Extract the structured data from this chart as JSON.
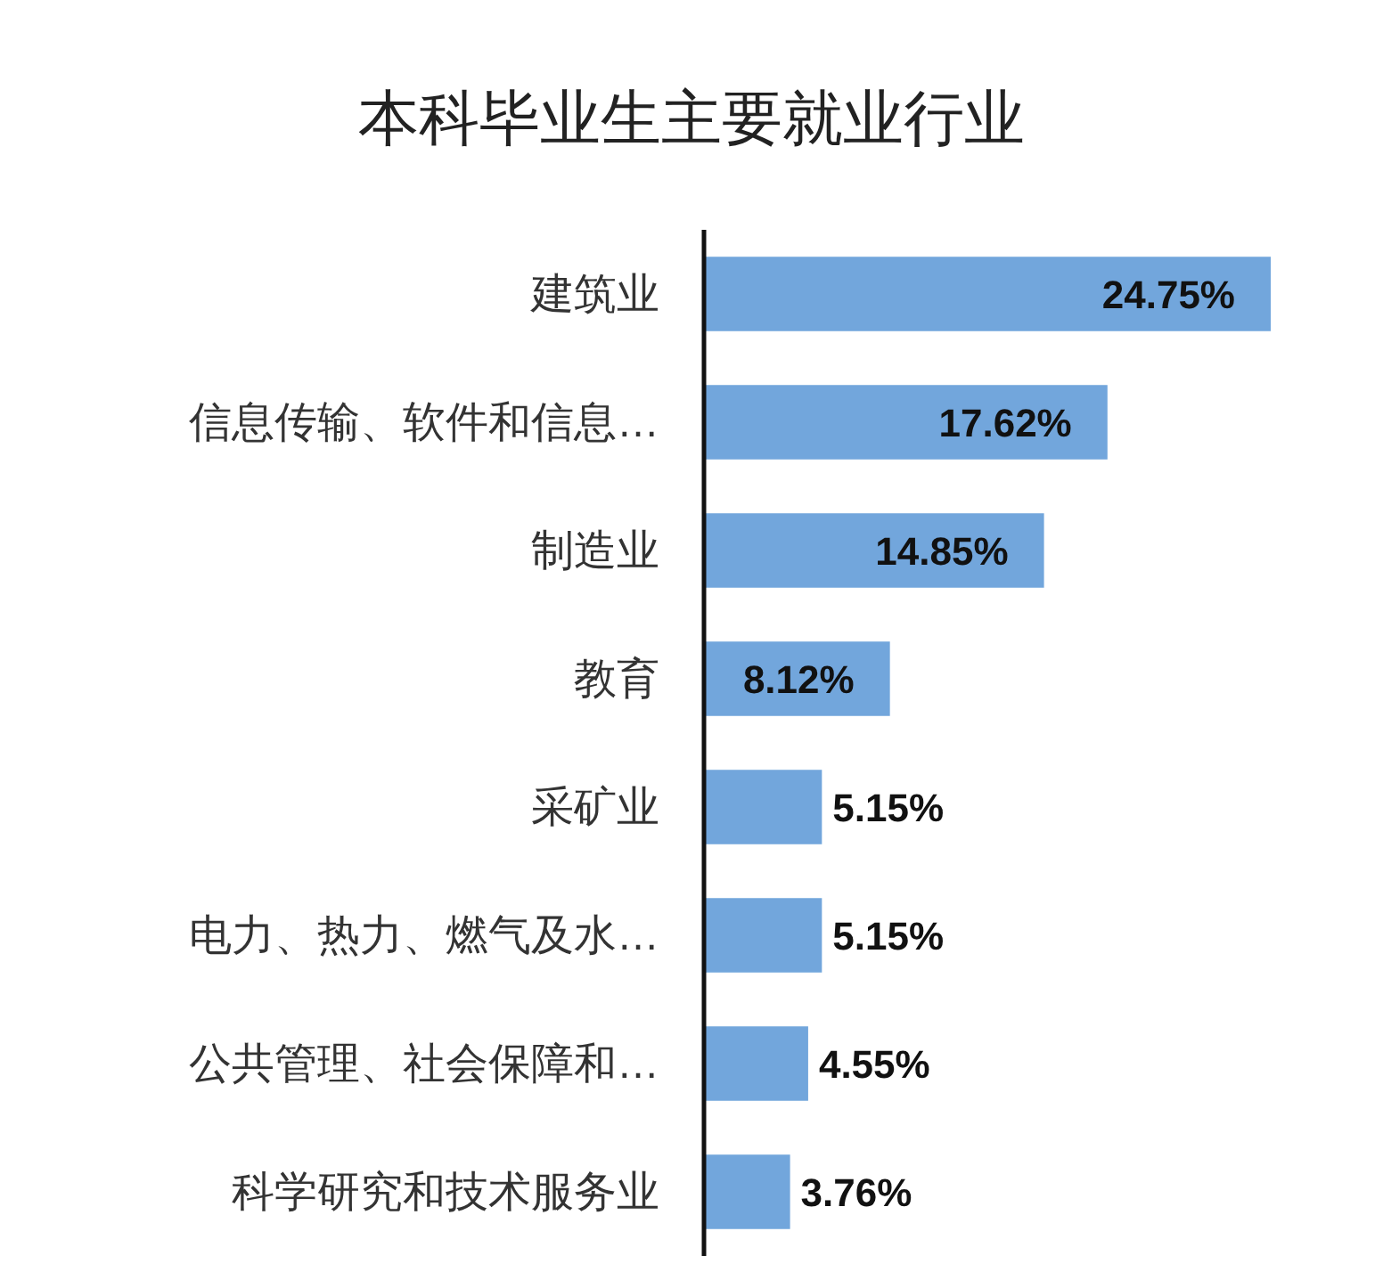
{
  "chart_data": {
    "type": "bar",
    "orientation": "horizontal",
    "title": "本科毕业生主要就业行业",
    "categories": [
      "建筑业",
      "信息传输、软件和信息…",
      "制造业",
      "教育",
      "采矿业",
      "电力、热力、燃气及水…",
      "公共管理、社会保障和…",
      "科学研究和技术服务业"
    ],
    "values": [
      24.75,
      17.62,
      14.85,
      8.12,
      5.15,
      5.15,
      4.55,
      3.76
    ],
    "value_labels": [
      "24.75%",
      "17.62%",
      "14.85%",
      "8.12%",
      "5.15%",
      "5.15%",
      "4.55%",
      "3.76%"
    ],
    "color": "#72a6dc"
  }
}
